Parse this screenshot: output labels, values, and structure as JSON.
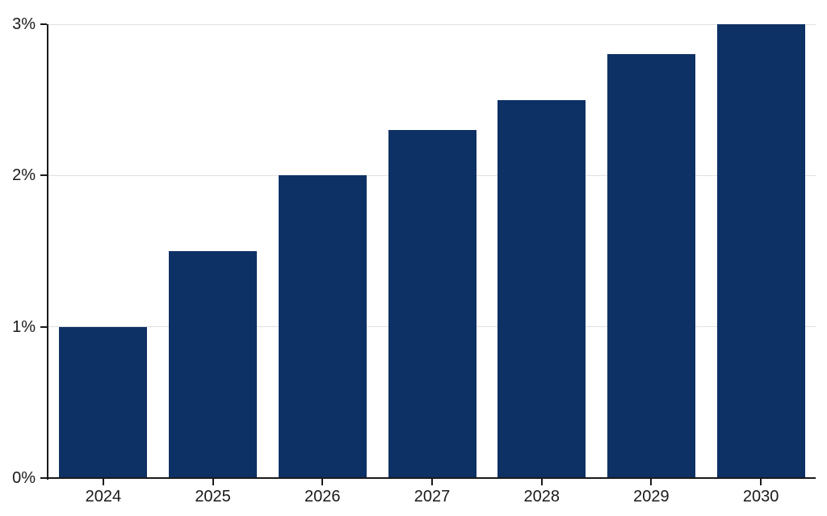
{
  "chart_data": {
    "type": "bar",
    "title": "",
    "xlabel": "",
    "ylabel": "",
    "categories": [
      "2024",
      "2025",
      "2026",
      "2027",
      "2028",
      "2029",
      "2030"
    ],
    "values": [
      1.0,
      1.5,
      2.0,
      2.3,
      2.5,
      2.8,
      3.0
    ],
    "unit": "%",
    "ylim": [
      0,
      3
    ],
    "yticks": [
      0,
      1,
      2,
      3
    ],
    "ytick_labels": [
      "0%",
      "1%",
      "2%",
      "3%"
    ],
    "grid": true,
    "legend": false,
    "colors": {
      "bar": "#0e3165",
      "gridline": "#e0e0e0",
      "axis": "#1a1a1a",
      "tick": "#1a1a1a",
      "label": "#1a1a1a",
      "background": "#ffffff"
    }
  }
}
